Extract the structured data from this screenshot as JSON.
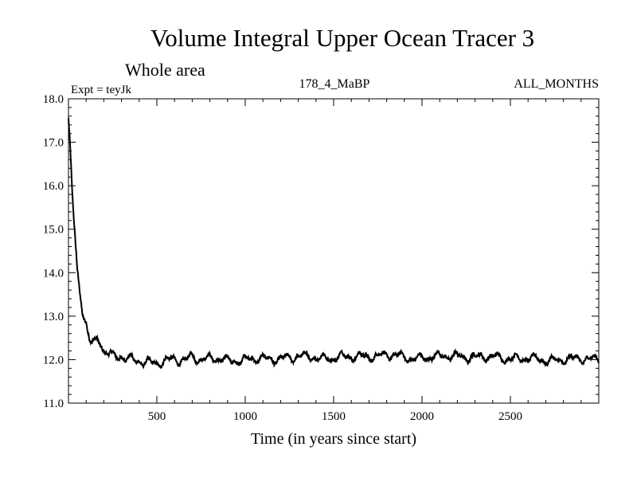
{
  "chart_data": {
    "type": "line",
    "title": "Volume Integral Upper Ocean Tracer 3",
    "subtitle": "Whole area",
    "expt_label": "Expt = teyJk",
    "run_label": "178_4_MaBP",
    "months_label": "ALL_MONTHS",
    "xlabel": "Time (in years since start)",
    "ylabel": "",
    "xlim": [
      0,
      3000
    ],
    "ylim": [
      11.0,
      18.0
    ],
    "x_ticks": [
      500,
      1000,
      1500,
      2000,
      2500
    ],
    "x_tick_labels": [
      "500",
      "1000",
      "1500",
      "2000",
      "2500"
    ],
    "y_ticks": [
      11.0,
      12.0,
      13.0,
      14.0,
      15.0,
      16.0,
      17.0,
      18.0
    ],
    "y_tick_labels": [
      "11.0",
      "12.0",
      "13.0",
      "14.0",
      "15.0",
      "16.0",
      "17.0",
      "18.0"
    ],
    "grid": false,
    "series": [
      {
        "name": "Tracer 3",
        "x": [
          0,
          10,
          20,
          30,
          40,
          50,
          60,
          70,
          80,
          90,
          100,
          110,
          120,
          130,
          140,
          150,
          160,
          175,
          190,
          200,
          220,
          240,
          260,
          280,
          300,
          330,
          360,
          400,
          450,
          500,
          550,
          600,
          650,
          700,
          750,
          800,
          900,
          1000,
          1100,
          1200,
          1300,
          1400,
          1500,
          1600,
          1700,
          1800,
          1900,
          2000,
          2100,
          2200,
          2300,
          2400,
          2500,
          2600,
          2700,
          2800,
          2900,
          3000
        ],
        "values": [
          17.5,
          16.8,
          15.9,
          15.2,
          14.6,
          14.0,
          13.7,
          13.4,
          13.1,
          12.95,
          12.85,
          12.6,
          12.45,
          12.4,
          12.4,
          12.45,
          12.5,
          12.45,
          12.3,
          12.2,
          12.15,
          12.1,
          12.05,
          12.05,
          12.05,
          12.0,
          12.0,
          12.0,
          11.95,
          11.9,
          11.95,
          12.0,
          12.0,
          12.1,
          12.0,
          12.0,
          12.0,
          12.0,
          12.0,
          12.05,
          12.05,
          12.05,
          12.05,
          12.05,
          12.1,
          12.1,
          12.05,
          12.05,
          12.05,
          12.1,
          12.05,
          12.05,
          12.05,
          12.0,
          12.0,
          12.0,
          12.0,
          12.05
        ]
      }
    ]
  }
}
